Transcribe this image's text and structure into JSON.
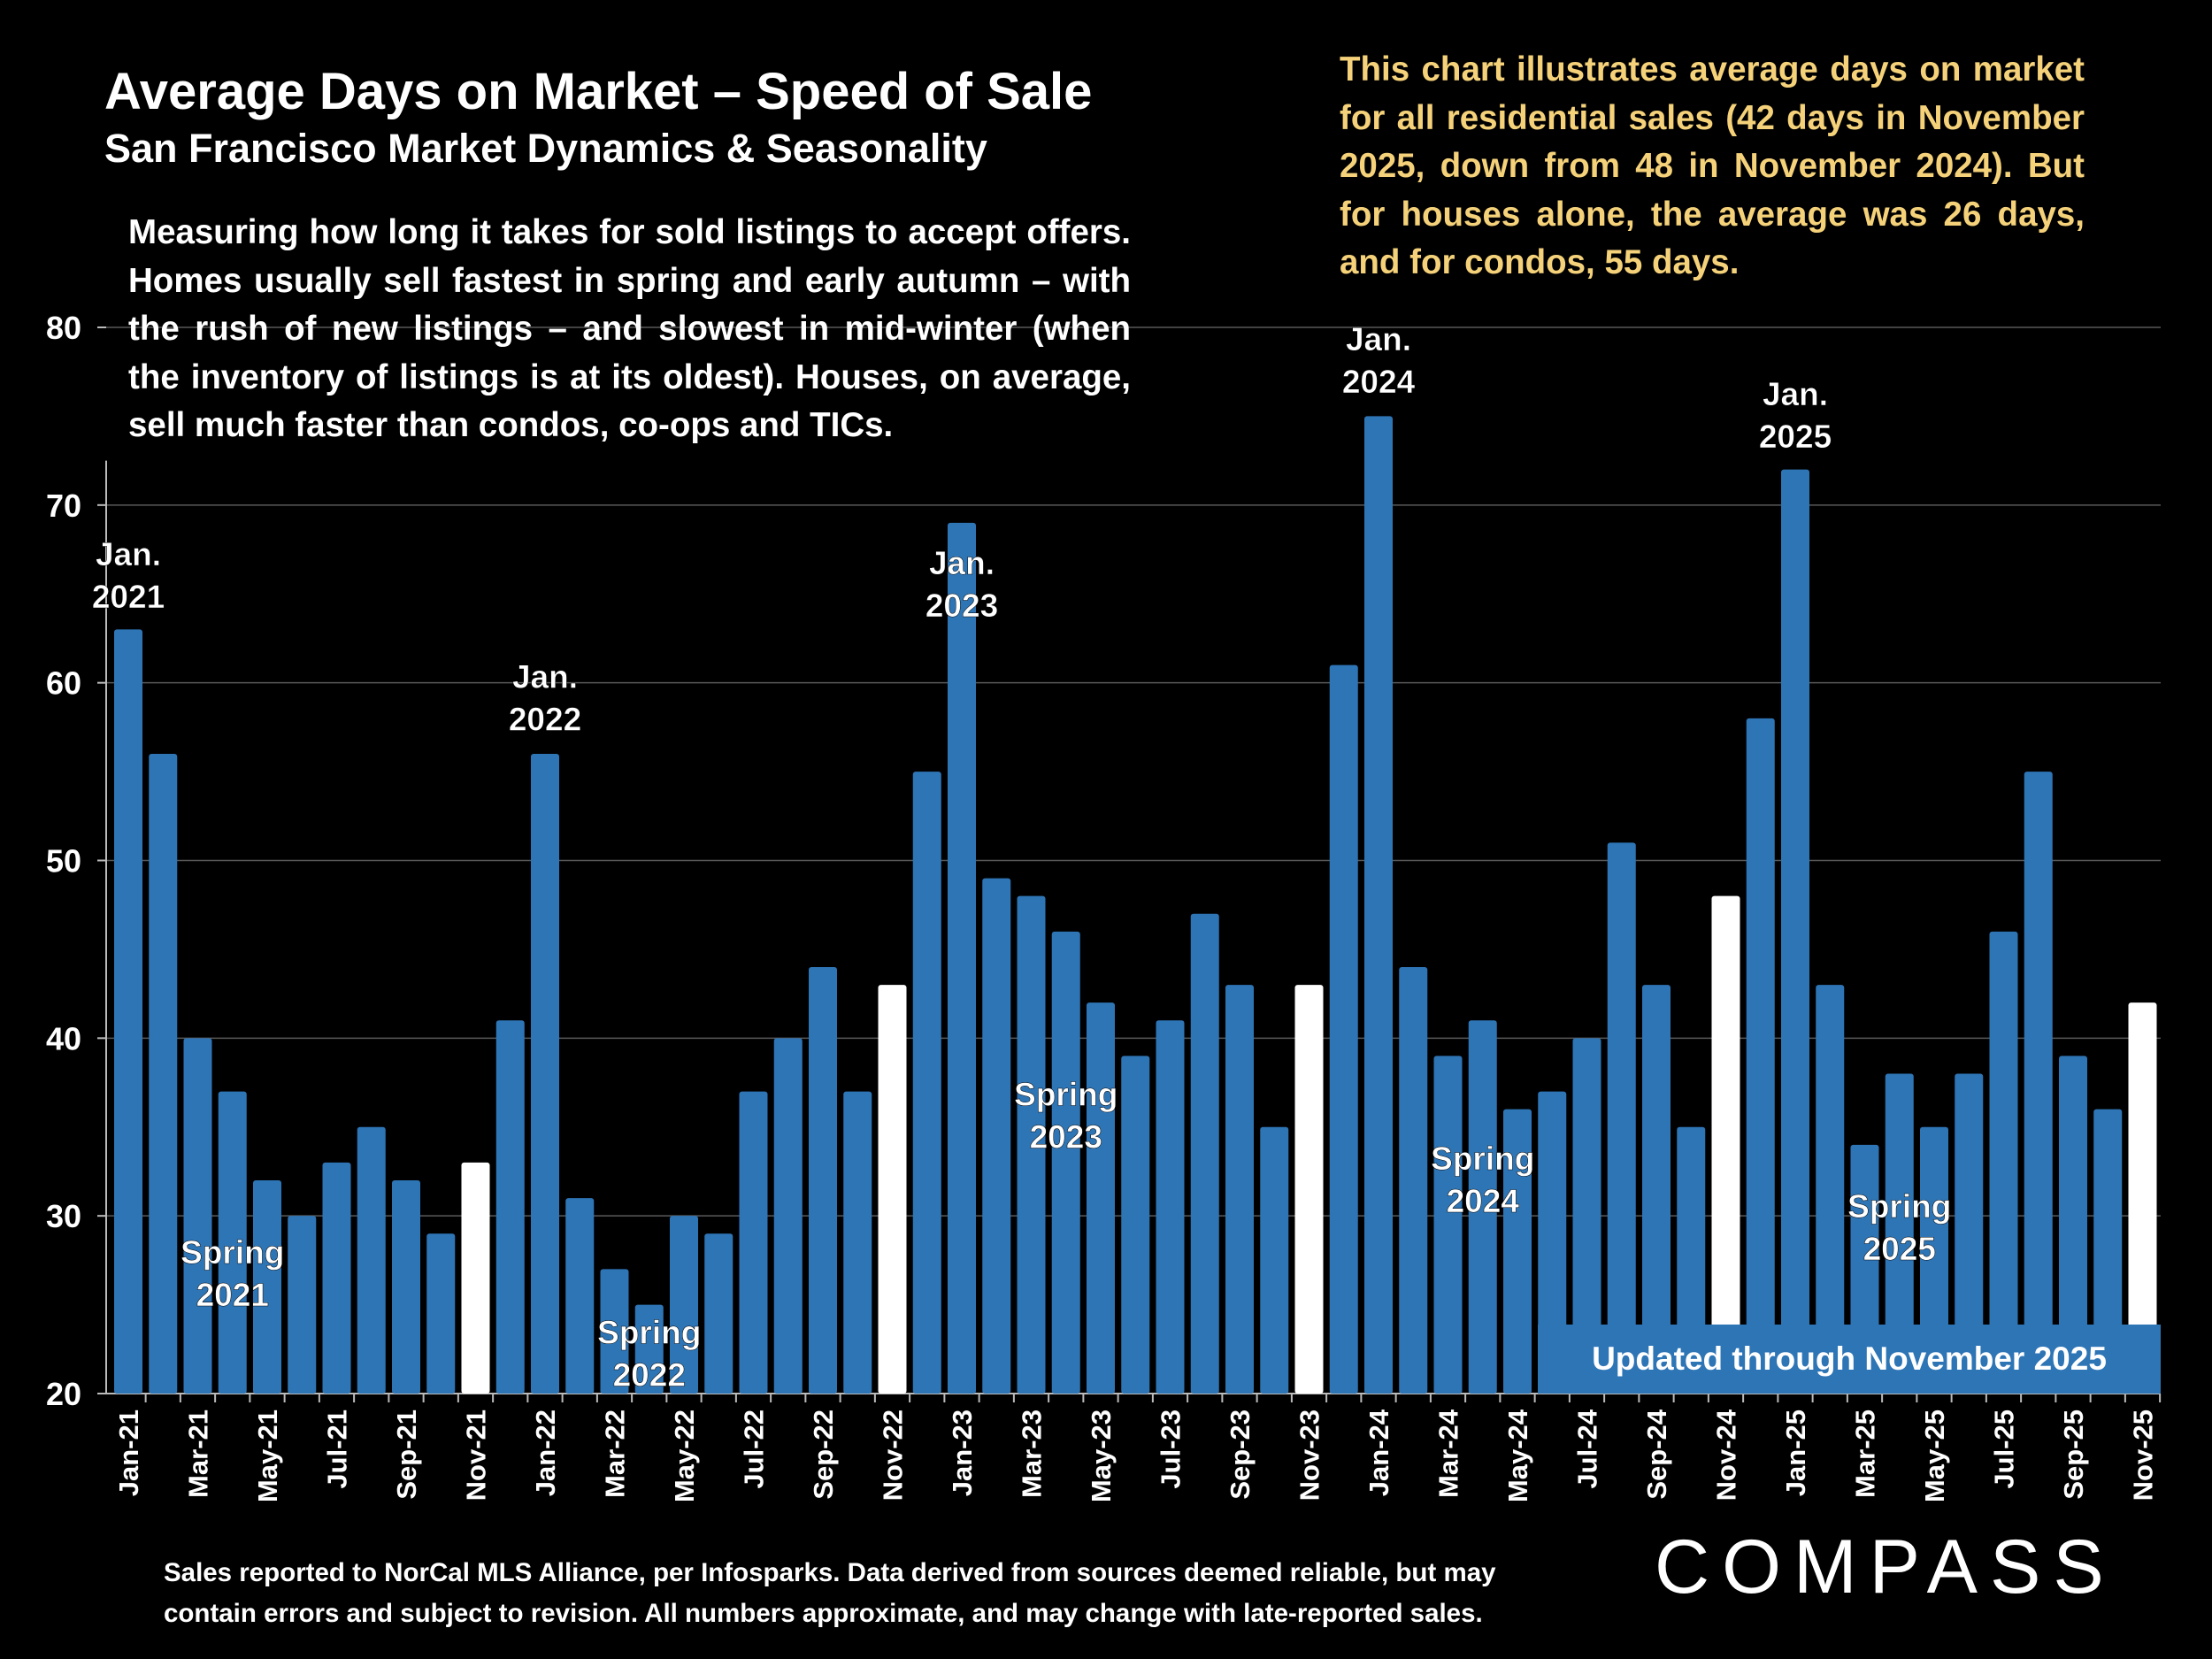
{
  "header": {
    "title": "Average Days on Market – Speed of Sale",
    "subtitle": "San Francisco Market Dynamics & Seasonality"
  },
  "intro_text": "Measuring how long it takes for sold listings to accept offers. Homes usually sell fastest in spring and early autumn – with the rush of new listings – and slowest in mid-winter (when the inventory of listings is at its oldest). Houses, on average, sell much faster than condos, co-ops and TICs.",
  "note_text": "This chart illustrates average days on market for all residential sales (42 days in November 2025, down from 48 in November 2024). But for houses alone, the average was 26 days, and for condos, 55 days.",
  "updated_label": "Updated through November 2025",
  "footer": "Sales reported to NorCal MLS Alliance, per Infosparks. Data derived from sources deemed reliable, but may contain errors and subject to revision. All numbers approximate, and may change with late-reported sales.",
  "logo": "COMPASS",
  "colors": {
    "bar": "#2e75b6",
    "highlight_bar": "#ffffff",
    "note_text": "#f5d27a",
    "background": "#000000"
  },
  "chart_data": {
    "type": "bar",
    "xlabel": "",
    "ylabel": "",
    "ylim": [
      20,
      80
    ],
    "yticks": [
      20,
      30,
      40,
      50,
      60,
      70,
      80
    ],
    "grid": true,
    "categories": [
      "Jan-21",
      "Feb-21",
      "Mar-21",
      "Apr-21",
      "May-21",
      "Jun-21",
      "Jul-21",
      "Aug-21",
      "Sep-21",
      "Oct-21",
      "Nov-21",
      "Dec-21",
      "Jan-22",
      "Feb-22",
      "Mar-22",
      "Apr-22",
      "May-22",
      "Jun-22",
      "Jul-22",
      "Aug-22",
      "Sep-22",
      "Oct-22",
      "Nov-22",
      "Dec-22",
      "Jan-23",
      "Feb-23",
      "Mar-23",
      "Apr-23",
      "May-23",
      "Jun-23",
      "Jul-23",
      "Aug-23",
      "Sep-23",
      "Oct-23",
      "Nov-23",
      "Dec-23",
      "Jan-24",
      "Feb-24",
      "Mar-24",
      "Apr-24",
      "May-24",
      "Jun-24",
      "Jul-24",
      "Aug-24",
      "Sep-24",
      "Oct-24",
      "Nov-24",
      "Dec-24",
      "Jan-25",
      "Feb-25",
      "Mar-25",
      "Apr-25",
      "May-25",
      "Jun-25",
      "Jul-25",
      "Aug-25",
      "Sep-25",
      "Oct-25",
      "Nov-25"
    ],
    "values": [
      63,
      56,
      40,
      37,
      32,
      30,
      33,
      35,
      32,
      29,
      33,
      41,
      56,
      31,
      27,
      25,
      30,
      29,
      37,
      40,
      44,
      37,
      43,
      55,
      69,
      49,
      48,
      46,
      42,
      39,
      41,
      47,
      43,
      35,
      43,
      61,
      75,
      44,
      39,
      41,
      36,
      37,
      40,
      51,
      43,
      35,
      48,
      58,
      72,
      43,
      34,
      38,
      35,
      38,
      46,
      55,
      39,
      36,
      42
    ],
    "highlighted": [
      "Nov-21",
      "Nov-22",
      "Nov-23",
      "Nov-24",
      "Nov-25"
    ],
    "annotations": [
      {
        "text": [
          "Jan.",
          "2021"
        ],
        "category": "Jan-21",
        "y": 68.4
      },
      {
        "text": [
          "Spring",
          "2021"
        ],
        "category": "Apr-21",
        "y": 29.1
      },
      {
        "text": [
          "Jan.",
          "2022"
        ],
        "category": "Jan-22",
        "y": 61.5
      },
      {
        "text": [
          "Spring",
          "2022"
        ],
        "category": "Apr-22",
        "y": 24.6
      },
      {
        "text": [
          "Jan.",
          "2023"
        ],
        "category": "Jan-23",
        "y": 67.9
      },
      {
        "text": [
          "Spring",
          "2023"
        ],
        "category": "Apr-23",
        "y": 38.0
      },
      {
        "text": [
          "Jan.",
          "2024"
        ],
        "category": "Jan-24",
        "y": 80.5
      },
      {
        "text": [
          "Spring",
          "2024"
        ],
        "category": "Apr-24",
        "y": 34.4
      },
      {
        "text": [
          "Jan.",
          "2025"
        ],
        "category": "Jan-25",
        "y": 77.4
      },
      {
        "text": [
          "Spring",
          "2025"
        ],
        "category": "Apr-25",
        "y": 31.7
      }
    ]
  }
}
